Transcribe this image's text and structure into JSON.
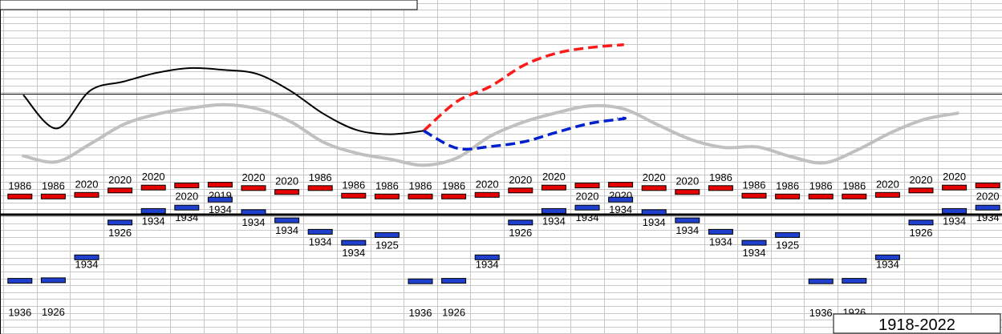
{
  "chart_data": {
    "type": "line",
    "range_label": "1918-2022",
    "colors": {
      "grid": "#c8c8c8",
      "max_marker": "#e60000",
      "min_marker": "#1f3fcf",
      "marker_edge": "#000000",
      "current_line": "#000000",
      "average_line": "#c0c0c0",
      "forecast_up": "#ff1a1a",
      "forecast_down": "#0020d0",
      "zero_line": "#000000",
      "mid_line": "#000000"
    },
    "max_markers": [
      {
        "level": 7.0,
        "year": "1986"
      },
      {
        "level": 7.0,
        "year": "1986"
      },
      {
        "level": 7.6,
        "year": "2020"
      },
      {
        "level": 9.3,
        "year": "2020"
      },
      {
        "level": 10.4,
        "year": "2020"
      },
      {
        "level": 11.2,
        "year": "2020"
      },
      {
        "level": 11.5,
        "year": "2019"
      },
      {
        "level": 10.2,
        "year": "2020"
      },
      {
        "level": 8.7,
        "year": "2020"
      },
      {
        "level": 10.2,
        "year": "1986"
      },
      {
        "level": 7.3,
        "year": "1986"
      },
      {
        "level": 7.0,
        "year": "1986"
      },
      {
        "level": 7.0,
        "year": "1986"
      },
      {
        "level": 7.0,
        "year": "1986"
      },
      {
        "level": 7.6,
        "year": "2020"
      },
      {
        "level": 9.3,
        "year": "2020"
      },
      {
        "level": 10.4,
        "year": "2020"
      },
      {
        "level": 11.2,
        "year": "2020"
      },
      {
        "level": 11.5,
        "year": "2020"
      },
      {
        "level": 10.2,
        "year": "2020"
      },
      {
        "level": 8.7,
        "year": "2020"
      },
      {
        "level": 10.2,
        "year": "1986"
      },
      {
        "level": 7.3,
        "year": "1986"
      },
      {
        "level": 7.0,
        "year": "1986"
      },
      {
        "level": 7.0,
        "year": "1986"
      },
      {
        "level": 7.0,
        "year": "1986"
      },
      {
        "level": 7.6,
        "year": "2020"
      },
      {
        "level": 9.3,
        "year": "2020"
      },
      {
        "level": 10.4,
        "year": "2020"
      },
      {
        "level": 11.2,
        "year": "2020"
      }
    ],
    "min_markers": [
      {
        "level": -25.4,
        "year": "1936"
      },
      {
        "level": -25.2,
        "year": "1926"
      },
      {
        "level": -16.4,
        "year": "1934"
      },
      {
        "level": -3.0,
        "year": "1926"
      },
      {
        "level": 1.4,
        "year": "1934"
      },
      {
        "level": 2.7,
        "year": "1934"
      },
      {
        "level": 5.8,
        "year": "1934"
      },
      {
        "level": 1.0,
        "year": "1934"
      },
      {
        "level": -2.2,
        "year": "1934"
      },
      {
        "level": -6.6,
        "year": "1934"
      },
      {
        "level": -10.8,
        "year": "1934"
      },
      {
        "level": -7.8,
        "year": "1925"
      },
      {
        "level": -25.6,
        "year": "1936"
      },
      {
        "level": -25.4,
        "year": "1926"
      },
      {
        "level": -16.4,
        "year": "1934"
      },
      {
        "level": -3.0,
        "year": "1926"
      },
      {
        "level": 1.4,
        "year": "1934"
      },
      {
        "level": 2.7,
        "year": "1934"
      },
      {
        "level": 5.8,
        "year": "1934"
      },
      {
        "level": 1.0,
        "year": "1934"
      },
      {
        "level": -2.2,
        "year": "1934"
      },
      {
        "level": -6.6,
        "year": "1934"
      },
      {
        "level": -10.8,
        "year": "1934"
      },
      {
        "level": -7.8,
        "year": "1925"
      },
      {
        "level": -25.6,
        "year": "1936"
      },
      {
        "level": -25.4,
        "year": "1926"
      },
      {
        "level": -16.4,
        "year": "1934"
      },
      {
        "level": -3.0,
        "year": "1926"
      },
      {
        "level": 1.4,
        "year": "1934"
      },
      {
        "level": 2.7,
        "year": "1934"
      }
    ],
    "current_line": [
      [
        0.6,
        46.0
      ],
      [
        1.6,
        33.1
      ],
      [
        2.6,
        47.6
      ],
      [
        3.6,
        51.1
      ],
      [
        4.6,
        54.5
      ],
      [
        5.6,
        56.3
      ],
      [
        6.6,
        55.6
      ],
      [
        7.6,
        54.1
      ],
      [
        8.6,
        47.6
      ],
      [
        9.6,
        38.7
      ],
      [
        10.6,
        32.5
      ],
      [
        11.6,
        30.9
      ],
      [
        12.6,
        32.2
      ]
    ],
    "average_line": [
      [
        0.6,
        22.6
      ],
      [
        1.6,
        20.3
      ],
      [
        2.6,
        27.1
      ],
      [
        3.6,
        34.6
      ],
      [
        4.6,
        38.6
      ],
      [
        5.6,
        40.9
      ],
      [
        6.6,
        42.2
      ],
      [
        7.6,
        40.7
      ],
      [
        8.6,
        35.8
      ],
      [
        9.6,
        27.8
      ],
      [
        10.6,
        23.6
      ],
      [
        11.6,
        21.3
      ],
      [
        12.6,
        19.0
      ],
      [
        13.6,
        21.8
      ],
      [
        14.6,
        30.2
      ],
      [
        15.6,
        35.6
      ],
      [
        16.6,
        39.2
      ],
      [
        17.6,
        41.8
      ],
      [
        18.6,
        40.6
      ],
      [
        19.6,
        34.6
      ],
      [
        20.6,
        28.9
      ],
      [
        21.6,
        25.8
      ],
      [
        22.6,
        26.0
      ],
      [
        23.6,
        22.3
      ],
      [
        24.6,
        19.9
      ],
      [
        25.6,
        24.9
      ],
      [
        26.6,
        31.5
      ],
      [
        27.6,
        36.6
      ],
      [
        28.6,
        39.0
      ]
    ],
    "forecast_up": [
      [
        12.6,
        32.2
      ],
      [
        13.6,
        43.5
      ],
      [
        14.6,
        49.3
      ],
      [
        15.6,
        57.4
      ],
      [
        16.6,
        62.1
      ],
      [
        17.6,
        64.2
      ],
      [
        18.6,
        65.3
      ]
    ],
    "forecast_down": [
      [
        12.6,
        32.2
      ],
      [
        13.6,
        25.5
      ],
      [
        14.6,
        26.2
      ],
      [
        15.6,
        28.0
      ],
      [
        16.6,
        31.7
      ],
      [
        17.6,
        35.1
      ],
      [
        18.6,
        36.9
      ],
      [
        18.4,
        37.0
      ]
    ]
  }
}
